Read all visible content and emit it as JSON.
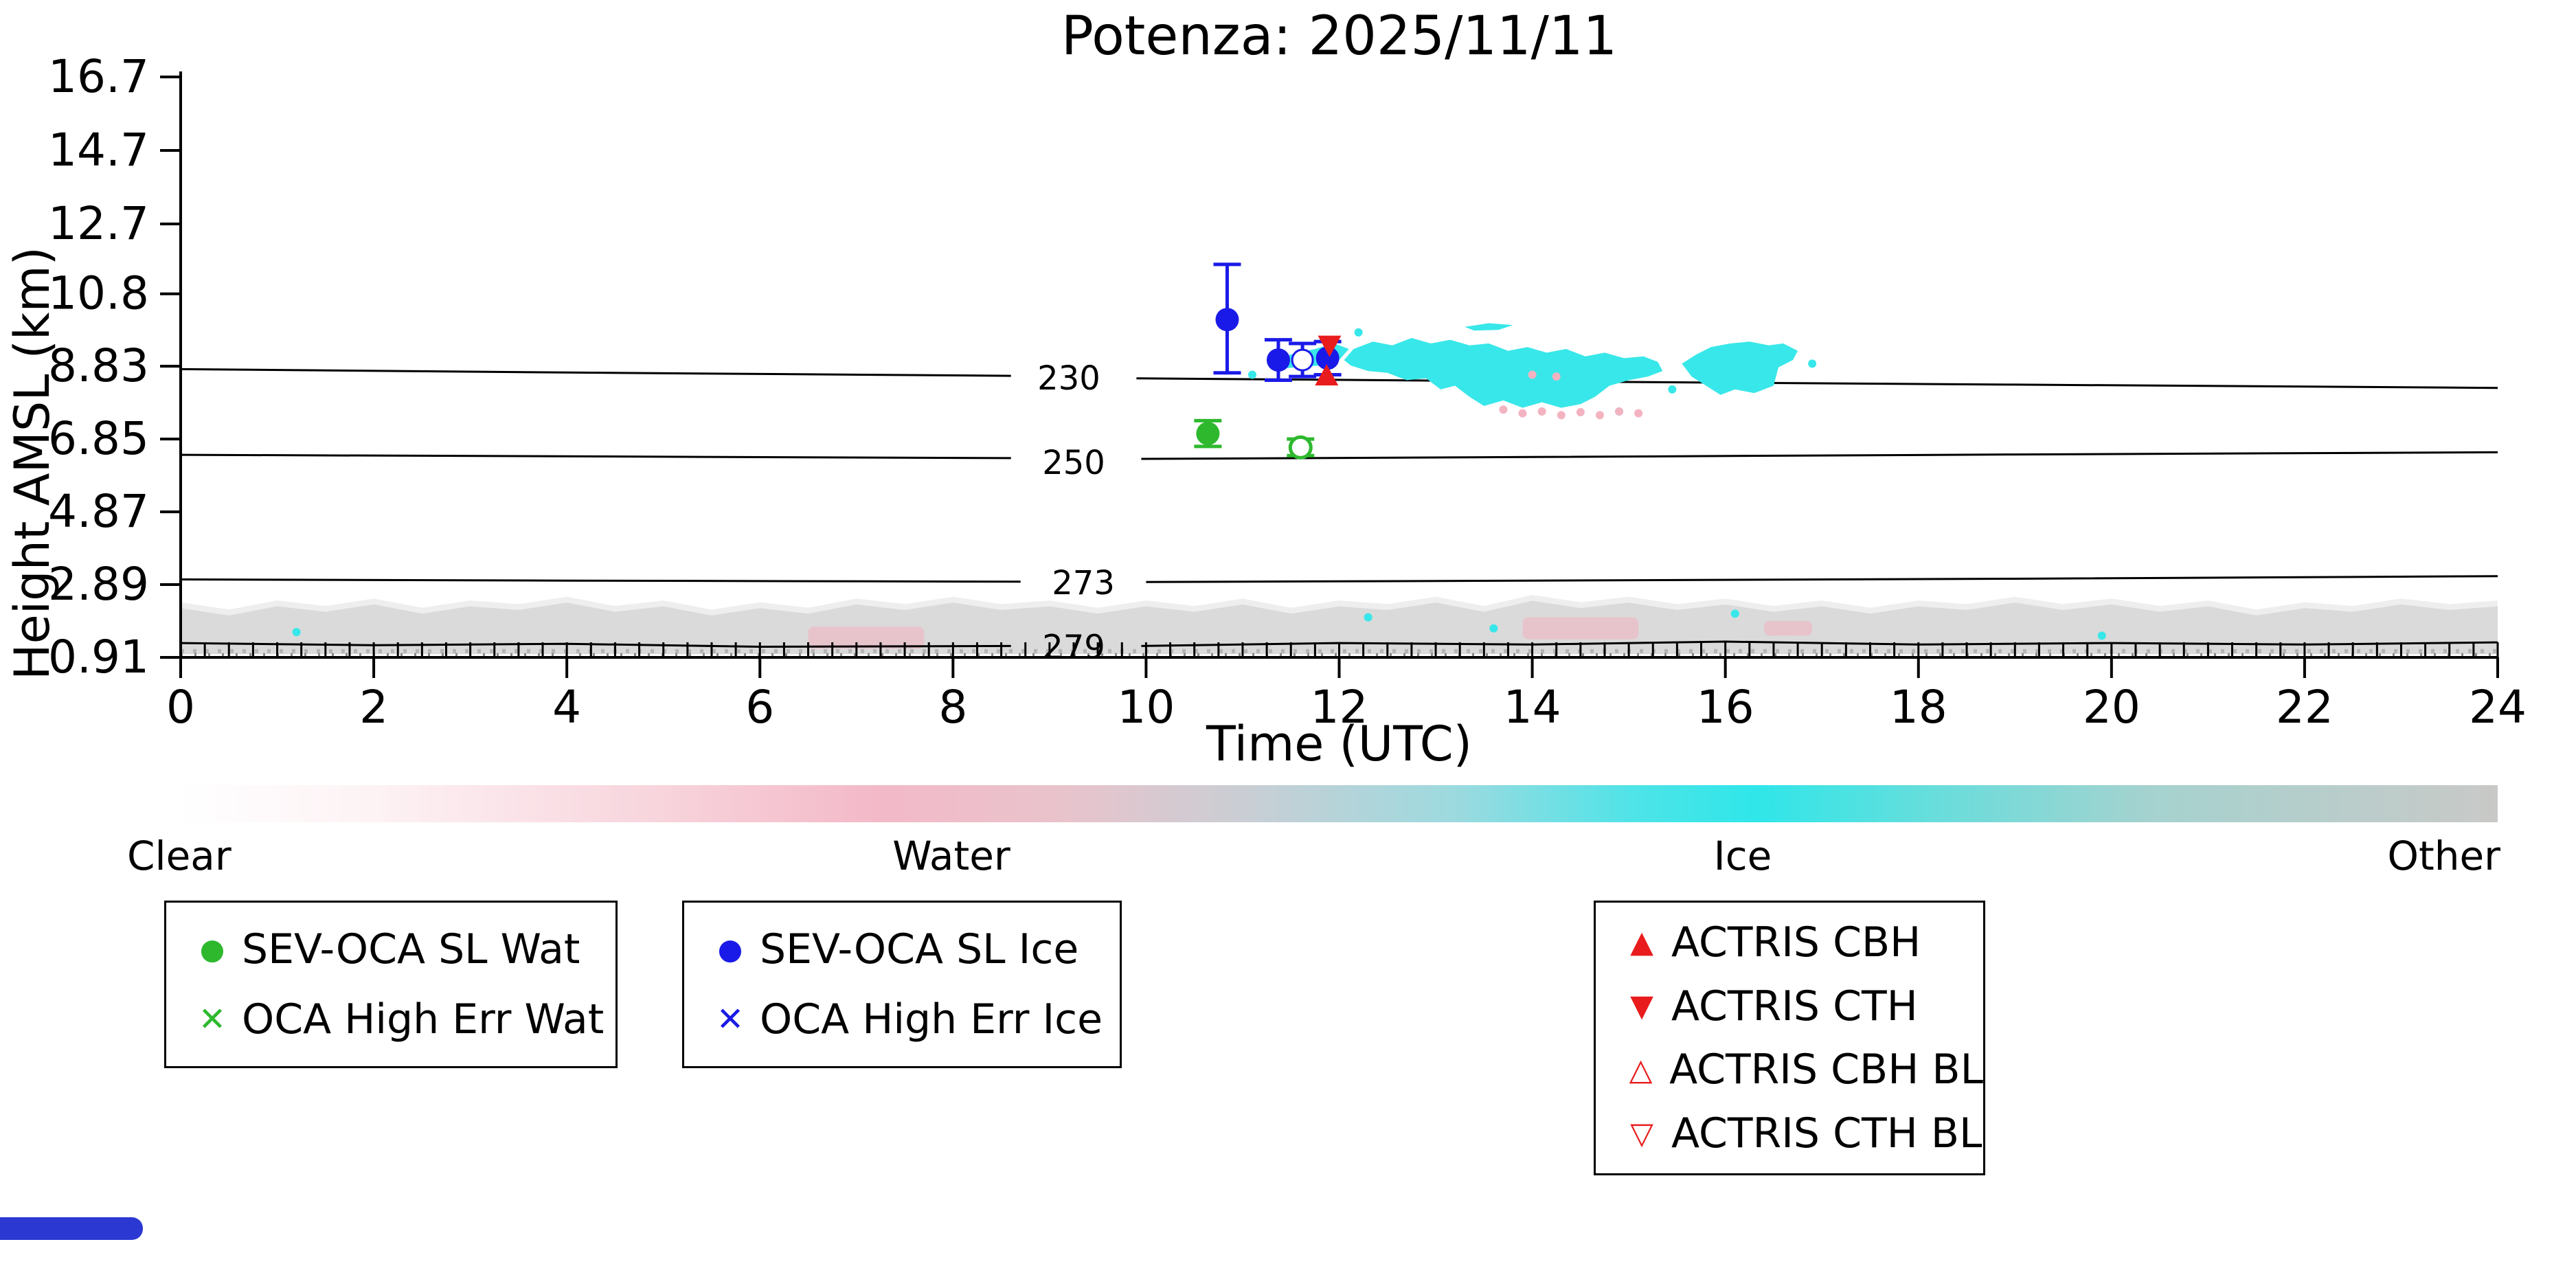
{
  "title": "Potenza: 2025/11/11",
  "axes": {
    "xlabel": "Time (UTC)",
    "ylabel": "Height AMSL (km)",
    "x_ticks": [
      0,
      2,
      4,
      6,
      8,
      10,
      12,
      14,
      16,
      18,
      20,
      22,
      24
    ],
    "x_range": [
      0,
      24
    ],
    "x_minor_step": 0.25,
    "y_ticks": [
      "16.7",
      "14.7",
      "12.7",
      "10.8",
      "8.83",
      "6.85",
      "4.87",
      "2.89",
      "0.91"
    ],
    "y_tick_values": [
      16.7,
      14.7,
      12.7,
      10.8,
      8.83,
      6.85,
      4.87,
      2.89,
      0.91
    ],
    "y_range": [
      0.91,
      16.7
    ]
  },
  "colors": {
    "ice": "#38e7e9",
    "water": "#f3b3c1",
    "other": "#dadada",
    "other_fringe": "#eeeeee",
    "green": "#2eb82e",
    "blue": "#1a1ae8",
    "red": "#e81c1c",
    "black": "#000000"
  },
  "chart_data": {
    "type": "scatter",
    "title": "Potenza: 2025/11/11",
    "xlabel": "Time (UTC)",
    "ylabel": "Height AMSL (km)",
    "xlim": [
      0,
      24
    ],
    "ylim": [
      0.91,
      16.7
    ],
    "isotherms": [
      {
        "label": "230",
        "label_pos": [
          9.2,
          8.52
        ],
        "segments": [
          [
            [
              0,
              8.75
            ],
            [
              4,
              8.66
            ],
            [
              8.6,
              8.57
            ]
          ],
          [
            [
              9.9,
              8.5
            ],
            [
              14,
              8.42
            ],
            [
              19,
              8.33
            ],
            [
              24,
              8.24
            ]
          ]
        ]
      },
      {
        "label": "250",
        "label_pos": [
          9.25,
          6.22
        ],
        "segments": [
          [
            [
              0,
              6.42
            ],
            [
              4,
              6.38
            ],
            [
              8.6,
              6.33
            ]
          ],
          [
            [
              9.95,
              6.31
            ],
            [
              14,
              6.36
            ],
            [
              19,
              6.43
            ],
            [
              24,
              6.49
            ]
          ]
        ]
      },
      {
        "label": "273",
        "label_pos": [
          9.35,
          2.95
        ],
        "segments": [
          [
            [
              0,
              3.03
            ],
            [
              4,
              3.0
            ],
            [
              8.7,
              2.97
            ]
          ],
          [
            [
              10.0,
              2.96
            ],
            [
              14,
              3.0
            ],
            [
              19,
              3.05
            ],
            [
              24,
              3.12
            ]
          ]
        ]
      },
      {
        "label": "279",
        "label_pos": [
          9.25,
          1.2
        ],
        "segments": [
          [
            [
              0,
              1.3
            ],
            [
              2,
              1.24
            ],
            [
              4,
              1.28
            ],
            [
              6,
              1.2
            ],
            [
              8.6,
              1.22
            ]
          ],
          [
            [
              9.95,
              1.22
            ],
            [
              12,
              1.3
            ],
            [
              14,
              1.26
            ],
            [
              16,
              1.34
            ],
            [
              18,
              1.26
            ],
            [
              20,
              1.3
            ],
            [
              22,
              1.26
            ],
            [
              24,
              1.32
            ]
          ]
        ]
      }
    ],
    "ice_clouds": [
      [
        [
          11.25,
          8.9
        ],
        [
          11.5,
          9.15
        ],
        [
          11.75,
          9.3
        ],
        [
          11.95,
          9.45
        ],
        [
          12.1,
          9.3
        ],
        [
          12.0,
          9.0
        ],
        [
          11.8,
          8.85
        ],
        [
          11.55,
          8.8
        ],
        [
          11.35,
          8.75
        ]
      ],
      [
        [
          12.05,
          9.0
        ],
        [
          12.15,
          9.3
        ],
        [
          12.35,
          9.5
        ],
        [
          12.55,
          9.4
        ],
        [
          12.75,
          9.6
        ],
        [
          12.95,
          9.45
        ],
        [
          13.15,
          9.55
        ],
        [
          13.35,
          9.4
        ],
        [
          13.55,
          9.45
        ],
        [
          13.75,
          9.25
        ],
        [
          13.95,
          9.35
        ],
        [
          14.15,
          9.2
        ],
        [
          14.35,
          9.3
        ],
        [
          14.55,
          9.1
        ],
        [
          14.75,
          9.2
        ],
        [
          14.95,
          9.05
        ],
        [
          15.15,
          9.1
        ],
        [
          15.3,
          8.95
        ],
        [
          15.35,
          8.7
        ],
        [
          15.2,
          8.55
        ],
        [
          15.0,
          8.45
        ],
        [
          14.8,
          8.3
        ],
        [
          14.65,
          8.0
        ],
        [
          14.5,
          7.8
        ],
        [
          14.3,
          7.7
        ],
        [
          14.1,
          7.85
        ],
        [
          13.9,
          7.7
        ],
        [
          13.7,
          7.9
        ],
        [
          13.5,
          7.75
        ],
        [
          13.35,
          8.0
        ],
        [
          13.2,
          8.3
        ],
        [
          13.05,
          8.2
        ],
        [
          12.9,
          8.5
        ],
        [
          12.7,
          8.45
        ],
        [
          12.5,
          8.65
        ],
        [
          12.3,
          8.7
        ],
        [
          12.12,
          8.85
        ]
      ],
      [
        [
          15.55,
          8.9
        ],
        [
          15.7,
          9.15
        ],
        [
          15.85,
          9.35
        ],
        [
          16.05,
          9.45
        ],
        [
          16.25,
          9.5
        ],
        [
          16.45,
          9.4
        ],
        [
          16.6,
          9.45
        ],
        [
          16.75,
          9.25
        ],
        [
          16.7,
          9.0
        ],
        [
          16.55,
          8.8
        ],
        [
          16.5,
          8.3
        ],
        [
          16.3,
          8.1
        ],
        [
          16.1,
          8.2
        ],
        [
          15.95,
          8.05
        ],
        [
          15.8,
          8.3
        ],
        [
          15.65,
          8.55
        ]
      ],
      [
        [
          13.3,
          9.9
        ],
        [
          13.55,
          10.0
        ],
        [
          13.8,
          9.95
        ],
        [
          13.65,
          9.82
        ],
        [
          13.4,
          9.8
        ]
      ]
    ],
    "cyan_specks": [
      [
        11.1,
        8.6
      ],
      [
        12.2,
        9.75
      ],
      [
        15.45,
        8.2
      ],
      [
        16.9,
        8.9
      ],
      [
        14.9,
        7.6
      ],
      [
        12.3,
        2.0
      ],
      [
        13.6,
        1.7
      ],
      [
        16.1,
        2.1
      ],
      [
        19.9,
        1.5
      ],
      [
        1.2,
        1.6
      ]
    ],
    "water_specks": [
      [
        13.7,
        7.65
      ],
      [
        13.9,
        7.55
      ],
      [
        14.1,
        7.6
      ],
      [
        14.3,
        7.5
      ],
      [
        14.5,
        7.58
      ],
      [
        14.7,
        7.5
      ],
      [
        14.9,
        7.6
      ],
      [
        15.1,
        7.55
      ],
      [
        14.25,
        8.55
      ],
      [
        14.0,
        8.6
      ]
    ],
    "other_band": {
      "bottom": 1.0,
      "top_points": [
        [
          0,
          2.25
        ],
        [
          0.5,
          2.05
        ],
        [
          1,
          2.3
        ],
        [
          1.5,
          2.15
        ],
        [
          2,
          2.35
        ],
        [
          2.5,
          2.1
        ],
        [
          3,
          2.3
        ],
        [
          3.5,
          2.2
        ],
        [
          4,
          2.4
        ],
        [
          4.5,
          2.15
        ],
        [
          5,
          2.3
        ],
        [
          5.5,
          2.05
        ],
        [
          6,
          2.25
        ],
        [
          6.5,
          2.1
        ],
        [
          7,
          2.35
        ],
        [
          7.5,
          2.2
        ],
        [
          8,
          2.4
        ],
        [
          8.5,
          2.2
        ],
        [
          9,
          2.3
        ],
        [
          9.5,
          2.1
        ],
        [
          10,
          2.3
        ],
        [
          10.5,
          2.15
        ],
        [
          11,
          2.35
        ],
        [
          11.5,
          2.1
        ],
        [
          12,
          2.3
        ],
        [
          12.5,
          2.2
        ],
        [
          13,
          2.4
        ],
        [
          13.5,
          2.15
        ],
        [
          14,
          2.45
        ],
        [
          14.5,
          2.25
        ],
        [
          15,
          2.4
        ],
        [
          15.5,
          2.2
        ],
        [
          16,
          2.35
        ],
        [
          16.5,
          2.15
        ],
        [
          17,
          2.3
        ],
        [
          17.5,
          2.1
        ],
        [
          18,
          2.3
        ],
        [
          18.5,
          2.2
        ],
        [
          19,
          2.4
        ],
        [
          19.5,
          2.2
        ],
        [
          20,
          2.35
        ],
        [
          20.5,
          2.15
        ],
        [
          21,
          2.3
        ],
        [
          21.5,
          2.05
        ],
        [
          22,
          2.25
        ],
        [
          22.5,
          2.15
        ],
        [
          23,
          2.35
        ],
        [
          23.5,
          2.2
        ],
        [
          24,
          2.3
        ]
      ]
    },
    "band_pink_patches": [
      {
        "t1": 6.5,
        "t2": 7.7,
        "h1": 1.15,
        "h2": 1.75
      },
      {
        "t1": 13.9,
        "t2": 15.1,
        "h1": 1.4,
        "h2": 2.0
      },
      {
        "t1": 16.4,
        "t2": 16.9,
        "h1": 1.5,
        "h2": 1.9
      }
    ],
    "series": {
      "sev_oca_sl_wat": {
        "color_key": "green",
        "marker": "circle",
        "points": [
          {
            "t": 10.64,
            "h": 7.0,
            "lo": 6.65,
            "hi": 7.35
          }
        ]
      },
      "oca_high_err_wat": {
        "color_key": "green",
        "marker": "circle_open",
        "points": [
          {
            "t": 11.6,
            "h": 6.62,
            "lo": 6.4,
            "hi": 6.85
          }
        ]
      },
      "sev_oca_sl_ice": {
        "color_key": "blue",
        "marker": "circle",
        "points": [
          {
            "t": 10.84,
            "h": 10.1,
            "lo": 8.65,
            "hi": 11.6
          },
          {
            "t": 11.37,
            "h": 9.0,
            "lo": 8.45,
            "hi": 9.55
          },
          {
            "t": 11.88,
            "h": 9.05,
            "lo": 8.6,
            "hi": 9.5
          }
        ]
      },
      "oca_high_err_ice": {
        "color_key": "blue",
        "marker": "circle_white",
        "points": [
          {
            "t": 11.62,
            "h": 9.0,
            "lo": 8.55,
            "hi": 9.45
          }
        ]
      },
      "actris_cth": {
        "color_key": "red",
        "marker": "tri_down",
        "points": [
          {
            "t": 11.9,
            "h": 9.42
          }
        ]
      },
      "actris_cbh": {
        "color_key": "red",
        "marker": "tri_up",
        "points": [
          {
            "t": 11.87,
            "h": 8.55
          }
        ]
      }
    }
  },
  "colorbar": {
    "labels": [
      {
        "text": "Clear",
        "align": "left"
      },
      {
        "text": "Water",
        "align": "center"
      },
      {
        "text": "Ice",
        "align": "center"
      },
      {
        "text": "Other",
        "align": "right"
      }
    ],
    "stops": [
      [
        0,
        "#ffffff"
      ],
      [
        8,
        "#fdf3f5"
      ],
      [
        20,
        "#f8d6de"
      ],
      [
        30,
        "#f3b9c8"
      ],
      [
        38,
        "#e9c3cc"
      ],
      [
        46,
        "#c9ced4"
      ],
      [
        55,
        "#9cdadf"
      ],
      [
        63,
        "#4ce4e8"
      ],
      [
        68,
        "#2fe6e9"
      ],
      [
        75,
        "#63dedd"
      ],
      [
        85,
        "#a5d2cf"
      ],
      [
        100,
        "#c9c9c7"
      ]
    ]
  },
  "legends": [
    {
      "items": [
        {
          "marker": "●",
          "color_key": "green",
          "label": "SEV-OCA SL Wat"
        },
        {
          "marker": "✕",
          "color_key": "green",
          "label": "OCA High Err Wat"
        }
      ]
    },
    {
      "items": [
        {
          "marker": "●",
          "color_key": "blue",
          "label": "SEV-OCA SL Ice"
        },
        {
          "marker": "✕",
          "color_key": "blue",
          "label": "OCA High Err Ice"
        }
      ]
    },
    {
      "items": [
        {
          "marker": "▲",
          "color_key": "red",
          "label": "ACTRIS CBH"
        },
        {
          "marker": "▼",
          "color_key": "red",
          "label": "ACTRIS CTH"
        },
        {
          "marker": "△",
          "color_key": "red",
          "label": "ACTRIS CBH BL"
        },
        {
          "marker": "▽",
          "color_key": "red",
          "label": "ACTRIS CTH BL"
        }
      ]
    }
  ]
}
